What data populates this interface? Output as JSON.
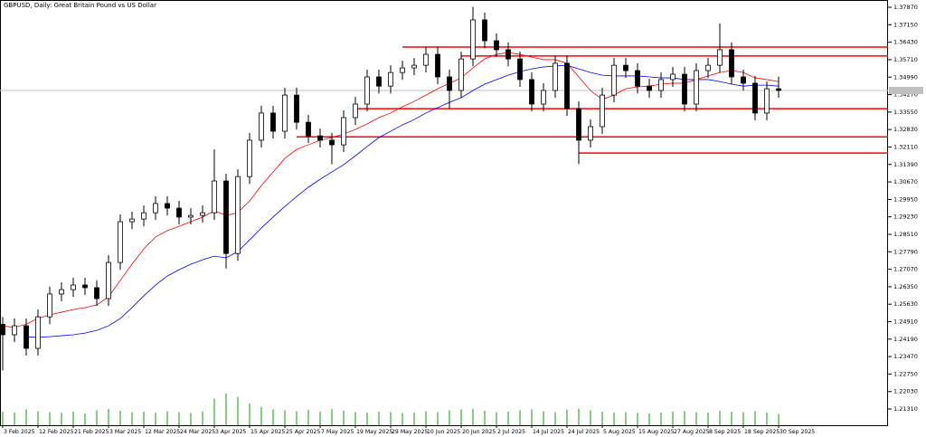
{
  "chart_data": {
    "type": "candlestick",
    "title": "GBPUSD, Daily:  Great Britain Pound vs US Dollar",
    "categories": [
      "3 Feb 2025",
      null,
      null,
      "12 Feb 2025",
      null,
      null,
      "21 Feb 2025",
      null,
      null,
      "3 Mar 2025",
      null,
      null,
      "12 Mar 2025",
      null,
      null,
      "24 Mar 2025",
      null,
      null,
      "3 Apr 2025",
      null,
      null,
      "15 Apr 2025",
      null,
      null,
      "25 Apr 2025",
      null,
      null,
      "7 May 2025",
      null,
      null,
      "19 May 2025",
      null,
      null,
      "29 May 2025",
      null,
      null,
      "10 Jun 2025",
      null,
      null,
      "20 Jun 2025",
      null,
      null,
      "2 Jul 2025",
      null,
      null,
      "14 Jul 2025",
      null,
      null,
      "24 Jul 2025",
      null,
      null,
      "5 Aug 2025",
      null,
      null,
      "15 Aug 2025",
      null,
      null,
      "27 Aug 2025",
      null,
      null,
      "8 Sep 2025",
      null,
      null,
      "18 Sep 2025",
      null,
      null,
      "30 Sep 2025"
    ],
    "open": [
      1.248,
      1.2437,
      1.2474,
      1.2381,
      1.2511,
      1.2605,
      1.2623,
      1.2642,
      1.2631,
      1.2586,
      1.2735,
      1.2903,
      1.2914,
      1.294,
      1.2978,
      1.2959,
      1.2922,
      1.2929,
      1.294,
      1.3071,
      1.2772,
      1.3089,
      1.3239,
      1.3351,
      1.3276,
      1.3425,
      1.3313,
      1.3257,
      1.3239,
      1.322,
      1.3332,
      1.3388,
      1.35,
      1.3462,
      1.3518,
      1.3537,
      1.3548,
      1.3593,
      1.35,
      1.3444,
      1.3574,
      1.3735,
      1.3649,
      1.3612,
      1.3574,
      1.3489,
      1.3388,
      1.3444,
      1.3556,
      1.3369,
      1.3239,
      1.3295,
      1.3425,
      1.3548,
      1.3526,
      1.3462,
      1.3444,
      1.3489,
      1.3511,
      1.3388,
      1.3526,
      1.3548,
      1.3612,
      1.35,
      1.3474,
      1.3351,
      1.3451
    ],
    "high": [
      1.251,
      1.2504,
      1.2504,
      1.2541,
      1.2635,
      1.2653,
      1.2672,
      1.2672,
      1.2661,
      1.2765,
      1.2933,
      1.2944,
      1.297,
      1.3008,
      1.3008,
      1.2989,
      1.2959,
      1.297,
      1.3201,
      1.3101,
      1.3119,
      1.3269,
      1.3381,
      1.3381,
      1.3455,
      1.3455,
      1.3343,
      1.3287,
      1.3269,
      1.3362,
      1.3418,
      1.353,
      1.353,
      1.3548,
      1.3567,
      1.3578,
      1.3623,
      1.3623,
      1.353,
      1.3604,
      1.3789,
      1.3765,
      1.3679,
      1.3642,
      1.3604,
      1.3519,
      1.3474,
      1.3586,
      1.3586,
      1.3399,
      1.3325,
      1.3455,
      1.3578,
      1.3578,
      1.3556,
      1.3492,
      1.3519,
      1.3541,
      1.3541,
      1.3556,
      1.3578,
      1.372,
      1.3642,
      1.353,
      1.3504,
      1.3481,
      1.3501
    ],
    "low": [
      1.229,
      1.2407,
      1.2351,
      1.2351,
      1.2481,
      1.2575,
      1.2593,
      1.2601,
      1.2556,
      1.2556,
      1.2705,
      1.2873,
      1.2884,
      1.291,
      1.2929,
      1.2892,
      1.2892,
      1.2899,
      1.291,
      1.271,
      1.2742,
      1.3059,
      1.3209,
      1.3246,
      1.3246,
      1.3283,
      1.3227,
      1.3209,
      1.314,
      1.319,
      1.3302,
      1.3358,
      1.3432,
      1.3432,
      1.3488,
      1.3507,
      1.3518,
      1.347,
      1.337,
      1.3414,
      1.3544,
      1.3619,
      1.3582,
      1.3544,
      1.3459,
      1.3358,
      1.3358,
      1.3414,
      1.3339,
      1.314,
      1.3209,
      1.3265,
      1.3395,
      1.3496,
      1.3432,
      1.3414,
      1.3414,
      1.3459,
      1.3358,
      1.3358,
      1.3496,
      1.3518,
      1.347,
      1.3444,
      1.3321,
      1.3321,
      1.3414
    ],
    "close": [
      1.2437,
      1.2474,
      1.2381,
      1.2511,
      1.2605,
      1.2623,
      1.2642,
      1.2631,
      1.2586,
      1.2735,
      1.2903,
      1.2914,
      1.294,
      1.2978,
      1.2959,
      1.2922,
      1.2929,
      1.294,
      1.3071,
      1.2772,
      1.3089,
      1.3239,
      1.3351,
      1.3276,
      1.3425,
      1.3313,
      1.3257,
      1.3239,
      1.322,
      1.3332,
      1.3388,
      1.35,
      1.3462,
      1.3518,
      1.3537,
      1.3548,
      1.3593,
      1.35,
      1.3444,
      1.3574,
      1.3735,
      1.3649,
      1.3612,
      1.3574,
      1.3489,
      1.3388,
      1.3444,
      1.3556,
      1.3369,
      1.3239,
      1.3295,
      1.3425,
      1.3548,
      1.3526,
      1.3462,
      1.3444,
      1.3489,
      1.3511,
      1.3388,
      1.3526,
      1.3548,
      1.3612,
      1.35,
      1.3474,
      1.3351,
      1.3451,
      1.3444
    ],
    "up_color": "#ffffff",
    "down_color": "#000000",
    "moving_averages": [
      {
        "color": "#ff0000",
        "values": [
          1.2474,
          1.2467,
          1.2481,
          1.2504,
          1.2519,
          1.253,
          1.2541,
          1.2549,
          1.256,
          1.2593,
          1.2661,
          1.2728,
          1.2791,
          1.284,
          1.2866,
          1.2884,
          1.2903,
          1.2922,
          1.2948,
          1.2929,
          1.294,
          1.2989,
          1.3052,
          1.3108,
          1.3164,
          1.3201,
          1.322,
          1.3239,
          1.325,
          1.3265,
          1.3283,
          1.3306,
          1.3332,
          1.3351,
          1.3377,
          1.3399,
          1.3425,
          1.3451,
          1.3474,
          1.3496,
          1.3537,
          1.3574,
          1.3593,
          1.36,
          1.3593,
          1.3582,
          1.3571,
          1.3571,
          1.3556,
          1.35,
          1.3444,
          1.3407,
          1.3425,
          1.3451,
          1.3459,
          1.3462,
          1.347,
          1.3474,
          1.3474,
          1.3489,
          1.3504,
          1.3518,
          1.3526,
          1.3518,
          1.3496,
          1.3489,
          1.3481
        ]
      },
      {
        "color": "#0000ff",
        "values": [
          null,
          null,
          1.2429,
          1.2426,
          1.2429,
          1.2433,
          1.2437,
          1.2444,
          1.2455,
          1.2474,
          1.2504,
          1.2549,
          1.2597,
          1.2642,
          1.2679,
          1.2705,
          1.2728,
          1.2746,
          1.2761,
          1.2754,
          1.278,
          1.2828,
          1.2877,
          1.2922,
          1.2966,
          1.3007,
          1.3045,
          1.3078,
          1.3108,
          1.3138,
          1.3175,
          1.3213,
          1.325,
          1.3276,
          1.3302,
          1.3324,
          1.3351,
          1.3373,
          1.3395,
          1.3414,
          1.3444,
          1.347,
          1.3489,
          1.3507,
          1.3522,
          1.3533,
          1.3541,
          1.3545,
          1.3548,
          1.3533,
          1.3518,
          1.3507,
          1.3504,
          1.3504,
          1.3504,
          1.35,
          1.3496,
          1.3496,
          1.3489,
          1.3489,
          1.3489,
          1.3481,
          1.347,
          1.3462,
          1.3466,
          1.3466,
          1.3462
        ]
      }
    ],
    "levels": [
      {
        "value": 1.3623,
        "x_start": 34,
        "color": "#ff0000"
      },
      {
        "value": 1.3586,
        "x_start": 39,
        "color": "#ff0000"
      },
      {
        "value": 1.3369,
        "x_start": 30,
        "color": "#ff0000"
      },
      {
        "value": 1.3253,
        "x_start": 25,
        "color": "#ff0000"
      },
      {
        "value": 1.3186,
        "x_start": 49,
        "color": "#ff0000"
      }
    ],
    "volumes": [
      60,
      55,
      70,
      62,
      58,
      55,
      60,
      52,
      66,
      72,
      64,
      58,
      60,
      55,
      62,
      58,
      54,
      60,
      118,
      140,
      125,
      96,
      80,
      70,
      66,
      62,
      68,
      60,
      72,
      64,
      58,
      55,
      60,
      58,
      54,
      56,
      62,
      58,
      66,
      70,
      72,
      64,
      58,
      60,
      66,
      70,
      62,
      58,
      68,
      74,
      66,
      60,
      56,
      58,
      54,
      52,
      56,
      60,
      62,
      58,
      56,
      64,
      60,
      58,
      62,
      56,
      50
    ],
    "volume_color": "#00a000",
    "last_price": 1.3444,
    "ylim": [
      1.2064,
      1.3817
    ],
    "yticks": [
      {
        "value": 1.3787,
        "label": "1.37870"
      },
      {
        "value": 1.3715,
        "label": "1.37150"
      },
      {
        "value": 1.3643,
        "label": "1.36430"
      },
      {
        "value": 1.3571,
        "label": "1.35710"
      },
      {
        "value": 1.3499,
        "label": "1.34990"
      },
      {
        "value": 1.3427,
        "label": "1.34270"
      },
      {
        "value": 1.3355,
        "label": "1.33550"
      },
      {
        "value": 1.3283,
        "label": "1.32830"
      },
      {
        "value": 1.3211,
        "label": "1.32110"
      },
      {
        "value": 1.3139,
        "label": "1.31390"
      },
      {
        "value": 1.3067,
        "label": "1.30670"
      },
      {
        "value": 1.2995,
        "label": "1.29950"
      },
      {
        "value": 1.2923,
        "label": "1.29230"
      },
      {
        "value": 1.2851,
        "label": "1.28510"
      },
      {
        "value": 1.2779,
        "label": "1.27790"
      },
      {
        "value": 1.2707,
        "label": "1.27070"
      },
      {
        "value": 1.2635,
        "label": "1.26350"
      },
      {
        "value": 1.2563,
        "label": "1.25630"
      },
      {
        "value": 1.2491,
        "label": "1.24910"
      },
      {
        "value": 1.2419,
        "label": "1.24190"
      },
      {
        "value": 1.2347,
        "label": "1.23470"
      },
      {
        "value": 1.2275,
        "label": "1.22750"
      },
      {
        "value": 1.2203,
        "label": "1.22030"
      },
      {
        "value": 1.2131,
        "label": "1.21310"
      }
    ],
    "grid": false
  }
}
